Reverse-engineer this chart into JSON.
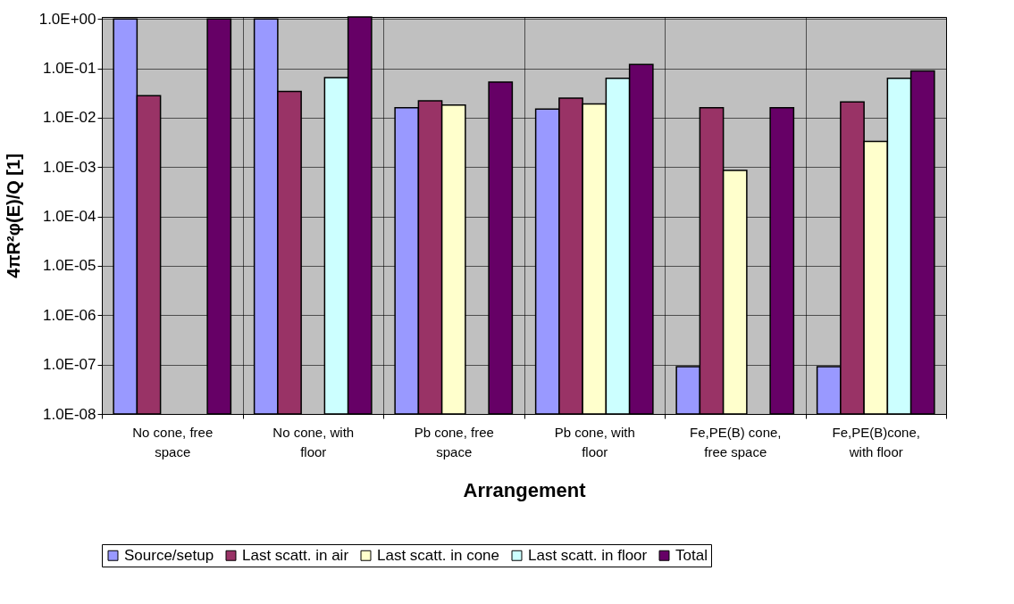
{
  "chart_data": {
    "type": "bar",
    "xlabel": "Arrangement",
    "ylabel": "4πR²φ(E)/Q  [1]",
    "categories": [
      "No cone, free space",
      "No cone, with floor",
      "Pb cone, free space",
      "Pb cone, with floor",
      "Fe,PE(B) cone, free space",
      "Fe,PE(B)cone, with floor"
    ],
    "series": [
      {
        "name": "Source/setup",
        "color": "#9999ff",
        "values": [
          1.0,
          1.0,
          0.016,
          0.015,
          9.1e-08,
          9.1e-08
        ]
      },
      {
        "name": "Last scatt. in air",
        "color": "#993366",
        "values": [
          0.028,
          0.034,
          0.022,
          0.025,
          0.016,
          0.021
        ]
      },
      {
        "name": "Last scatt. in cone",
        "color": "#ffffcc",
        "values": [
          null,
          null,
          0.018,
          0.019,
          0.00086,
          0.0033
        ]
      },
      {
        "name": "Last scatt. in floor",
        "color": "#ccffff",
        "values": [
          null,
          0.065,
          null,
          0.063,
          null,
          0.063
        ]
      },
      {
        "name": "Total",
        "color": "#660066",
        "values": [
          1.0,
          1.1,
          0.053,
          0.12,
          0.016,
          0.089
        ]
      }
    ],
    "log": true,
    "ylim": [
      1e-08,
      1.1
    ],
    "yticks": [
      {
        "value": 1e-08,
        "label": "1.0E-08"
      },
      {
        "value": 1e-07,
        "label": "1.0E-07"
      },
      {
        "value": 1e-06,
        "label": "1.0E-06"
      },
      {
        "value": 1e-05,
        "label": "1.0E-05"
      },
      {
        "value": 0.0001,
        "label": "1.0E-04"
      },
      {
        "value": 0.001,
        "label": "1.0E-03"
      },
      {
        "value": 0.01,
        "label": "1.0E-02"
      },
      {
        "value": 0.1,
        "label": "1.0E-01"
      },
      {
        "value": 1,
        "label": "1.0E+00"
      }
    ],
    "grid": true,
    "legend": "bottom"
  }
}
